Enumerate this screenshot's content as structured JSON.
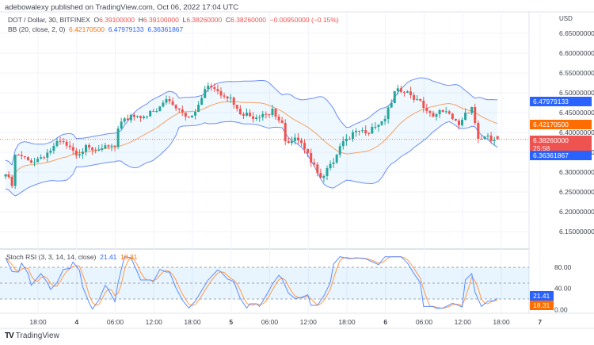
{
  "header": {
    "published": "adebowalexy published on TradingView.com, Oct 06, 2022 17:04 UTC",
    "symbol": "DOT / Dollar, 30, BITFINEX",
    "o_label": "O",
    "o": "6.39100000",
    "h_label": "H",
    "h": "6.39100000",
    "l_label": "L",
    "l": "6.38260000",
    "c_label": "C",
    "c": "6.38260000",
    "change": "−0.00950000 (−0.15%)",
    "bb_label": "BB (20, close, 2, 0)",
    "bb_basis": "6.42170500",
    "bb_upper": "6.47979133",
    "bb_lower": "6.36361867"
  },
  "price_axis": {
    "currency": "USD",
    "ticks": [
      "6.65000000",
      "6.60000000",
      "6.55000000",
      "6.50000000",
      "6.45000000",
      "6.40000000",
      "6.35000000",
      "6.30000000",
      "6.25000000",
      "6.20000000",
      "6.15000000"
    ],
    "badges": {
      "upper": "6.47979133",
      "basis": "6.42170500",
      "last": "6.38260000",
      "countdown": "25:58",
      "lower": "6.36361867"
    }
  },
  "stoch": {
    "label": "Stoch RSI (3, 3, 14, 14, close)",
    "k_value": "21.41",
    "d_value": "18.31",
    "ticks": [
      "80.00",
      "40.00",
      "0.00"
    ],
    "bands": [
      80,
      50,
      20
    ]
  },
  "time_axis": {
    "labels": [
      "18:00",
      "4",
      "06:00",
      "12:00",
      "18:00",
      "5",
      "06:00",
      "12:00",
      "18:00",
      "6",
      "06:00",
      "12:00",
      "18:00",
      "7"
    ]
  },
  "footer": {
    "logo": "TV",
    "brand": "TradingView"
  },
  "colors": {
    "up": "#26a69a",
    "down": "#ef5350",
    "bb_band": "#6d8ff5",
    "bb_basis": "#f7a163",
    "k": "#5b8cff",
    "d": "#ff9a4a",
    "badge_blue": "#2962ff",
    "badge_orange": "#ff6d00",
    "badge_red": "#ef5350"
  },
  "chart_data": [
    {
      "type": "candlestick",
      "interval": "30",
      "bars": 154,
      "ylim": [
        6.15,
        6.65
      ],
      "last_bar": {
        "open": 6.391,
        "high": 6.391,
        "low": 6.3826,
        "close": 6.3826
      },
      "close_samples": [
        {
          "bar": 0,
          "close": 6.294
        },
        {
          "bar": 2,
          "close": 6.265
        },
        {
          "bar": 3,
          "close": 6.344
        },
        {
          "bar": 8,
          "close": 6.324
        },
        {
          "bar": 14,
          "close": 6.354
        },
        {
          "bar": 17,
          "close": 6.378
        },
        {
          "bar": 22,
          "close": 6.342
        },
        {
          "bar": 25,
          "close": 6.368
        },
        {
          "bar": 30,
          "close": 6.36
        },
        {
          "bar": 34,
          "close": 6.364
        },
        {
          "bar": 35,
          "close": 6.41
        },
        {
          "bar": 39,
          "close": 6.444
        },
        {
          "bar": 43,
          "close": 6.44
        },
        {
          "bar": 47,
          "close": 6.454
        },
        {
          "bar": 50,
          "close": 6.484
        },
        {
          "bar": 54,
          "close": 6.458
        },
        {
          "bar": 57,
          "close": 6.438
        },
        {
          "bar": 60,
          "close": 6.47
        },
        {
          "bar": 63,
          "close": 6.518
        },
        {
          "bar": 66,
          "close": 6.504
        },
        {
          "bar": 70,
          "close": 6.488
        },
        {
          "bar": 72,
          "close": 6.46
        },
        {
          "bar": 77,
          "close": 6.434
        },
        {
          "bar": 82,
          "close": 6.444
        },
        {
          "bar": 83,
          "close": 6.46
        },
        {
          "bar": 86,
          "close": 6.424
        },
        {
          "bar": 87,
          "close": 6.378
        },
        {
          "bar": 91,
          "close": 6.38
        },
        {
          "bar": 93,
          "close": 6.358
        },
        {
          "bar": 95,
          "close": 6.324
        },
        {
          "bar": 97,
          "close": 6.298
        },
        {
          "bar": 99,
          "close": 6.29
        },
        {
          "bar": 100,
          "close": 6.31
        },
        {
          "bar": 103,
          "close": 6.344
        },
        {
          "bar": 105,
          "close": 6.378
        },
        {
          "bar": 107,
          "close": 6.384
        },
        {
          "bar": 109,
          "close": 6.404
        },
        {
          "bar": 112,
          "close": 6.398
        },
        {
          "bar": 114,
          "close": 6.414
        },
        {
          "bar": 118,
          "close": 6.434
        },
        {
          "bar": 120,
          "close": 6.474
        },
        {
          "bar": 121,
          "close": 6.504
        },
        {
          "bar": 124,
          "close": 6.5
        },
        {
          "bar": 126,
          "close": 6.494
        },
        {
          "bar": 129,
          "close": 6.48
        },
        {
          "bar": 131,
          "close": 6.454
        },
        {
          "bar": 134,
          "close": 6.446
        },
        {
          "bar": 136,
          "close": 6.452
        },
        {
          "bar": 139,
          "close": 6.434
        },
        {
          "bar": 141,
          "close": 6.418
        },
        {
          "bar": 143,
          "close": 6.45
        },
        {
          "bar": 145,
          "close": 6.464
        },
        {
          "bar": 146,
          "close": 6.424
        },
        {
          "bar": 147,
          "close": 6.384
        },
        {
          "bar": 149,
          "close": 6.39
        },
        {
          "bar": 151,
          "close": 6.378
        },
        {
          "bar": 153,
          "close": 6.3826
        }
      ],
      "overlay": "Bollinger Bands (20, 2)"
    },
    {
      "type": "line",
      "title": "Stoch RSI (3, 3, 14, 14, close)",
      "ylim": [
        0,
        100
      ],
      "k_samples": [
        [
          0,
          98
        ],
        [
          2,
          72
        ],
        [
          4,
          71
        ],
        [
          5,
          88
        ],
        [
          7,
          68
        ],
        [
          8,
          46
        ],
        [
          11,
          68
        ],
        [
          13,
          51
        ],
        [
          14,
          38
        ],
        [
          16,
          51
        ],
        [
          18,
          76
        ],
        [
          20,
          78
        ],
        [
          21,
          90
        ],
        [
          23,
          74
        ],
        [
          24,
          43
        ],
        [
          26,
          13
        ],
        [
          27,
          1
        ],
        [
          29,
          18
        ],
        [
          31,
          46
        ],
        [
          32,
          38
        ],
        [
          34,
          15
        ],
        [
          35,
          51
        ],
        [
          37,
          100
        ],
        [
          39,
          98
        ],
        [
          41,
          71
        ],
        [
          42,
          56
        ],
        [
          45,
          56
        ],
        [
          46,
          53
        ],
        [
          48,
          76
        ],
        [
          50,
          71
        ],
        [
          51,
          71
        ],
        [
          53,
          41
        ],
        [
          55,
          18
        ],
        [
          57,
          3
        ],
        [
          59,
          16
        ],
        [
          61,
          36
        ],
        [
          63,
          56
        ],
        [
          66,
          75
        ],
        [
          67,
          71
        ],
        [
          69,
          58
        ],
        [
          71,
          53
        ],
        [
          73,
          21
        ],
        [
          75,
          3
        ],
        [
          76,
          11
        ],
        [
          78,
          11
        ],
        [
          79,
          6
        ],
        [
          81,
          26
        ],
        [
          83,
          48
        ],
        [
          85,
          65
        ],
        [
          86,
          58
        ],
        [
          88,
          31
        ],
        [
          90,
          21
        ],
        [
          92,
          23
        ],
        [
          94,
          28
        ],
        [
          95,
          8
        ],
        [
          97,
          8
        ],
        [
          99,
          26
        ],
        [
          101,
          51
        ],
        [
          102,
          86
        ],
        [
          104,
          100
        ],
        [
          107,
          96
        ],
        [
          109,
          98
        ],
        [
          112,
          96
        ],
        [
          116,
          85
        ],
        [
          118,
          100
        ],
        [
          123,
          100
        ],
        [
          125,
          88
        ],
        [
          127,
          68
        ],
        [
          129,
          51
        ],
        [
          130,
          6
        ],
        [
          133,
          6
        ],
        [
          134,
          2
        ],
        [
          136,
          3
        ],
        [
          139,
          12
        ],
        [
          140,
          10
        ],
        [
          142,
          5
        ],
        [
          143,
          56
        ],
        [
          145,
          68
        ],
        [
          146,
          33
        ],
        [
          148,
          6
        ],
        [
          150,
          16
        ],
        [
          152,
          17
        ],
        [
          153,
          21.41
        ]
      ],
      "last_k": 21.41,
      "last_d": 18.31
    }
  ]
}
